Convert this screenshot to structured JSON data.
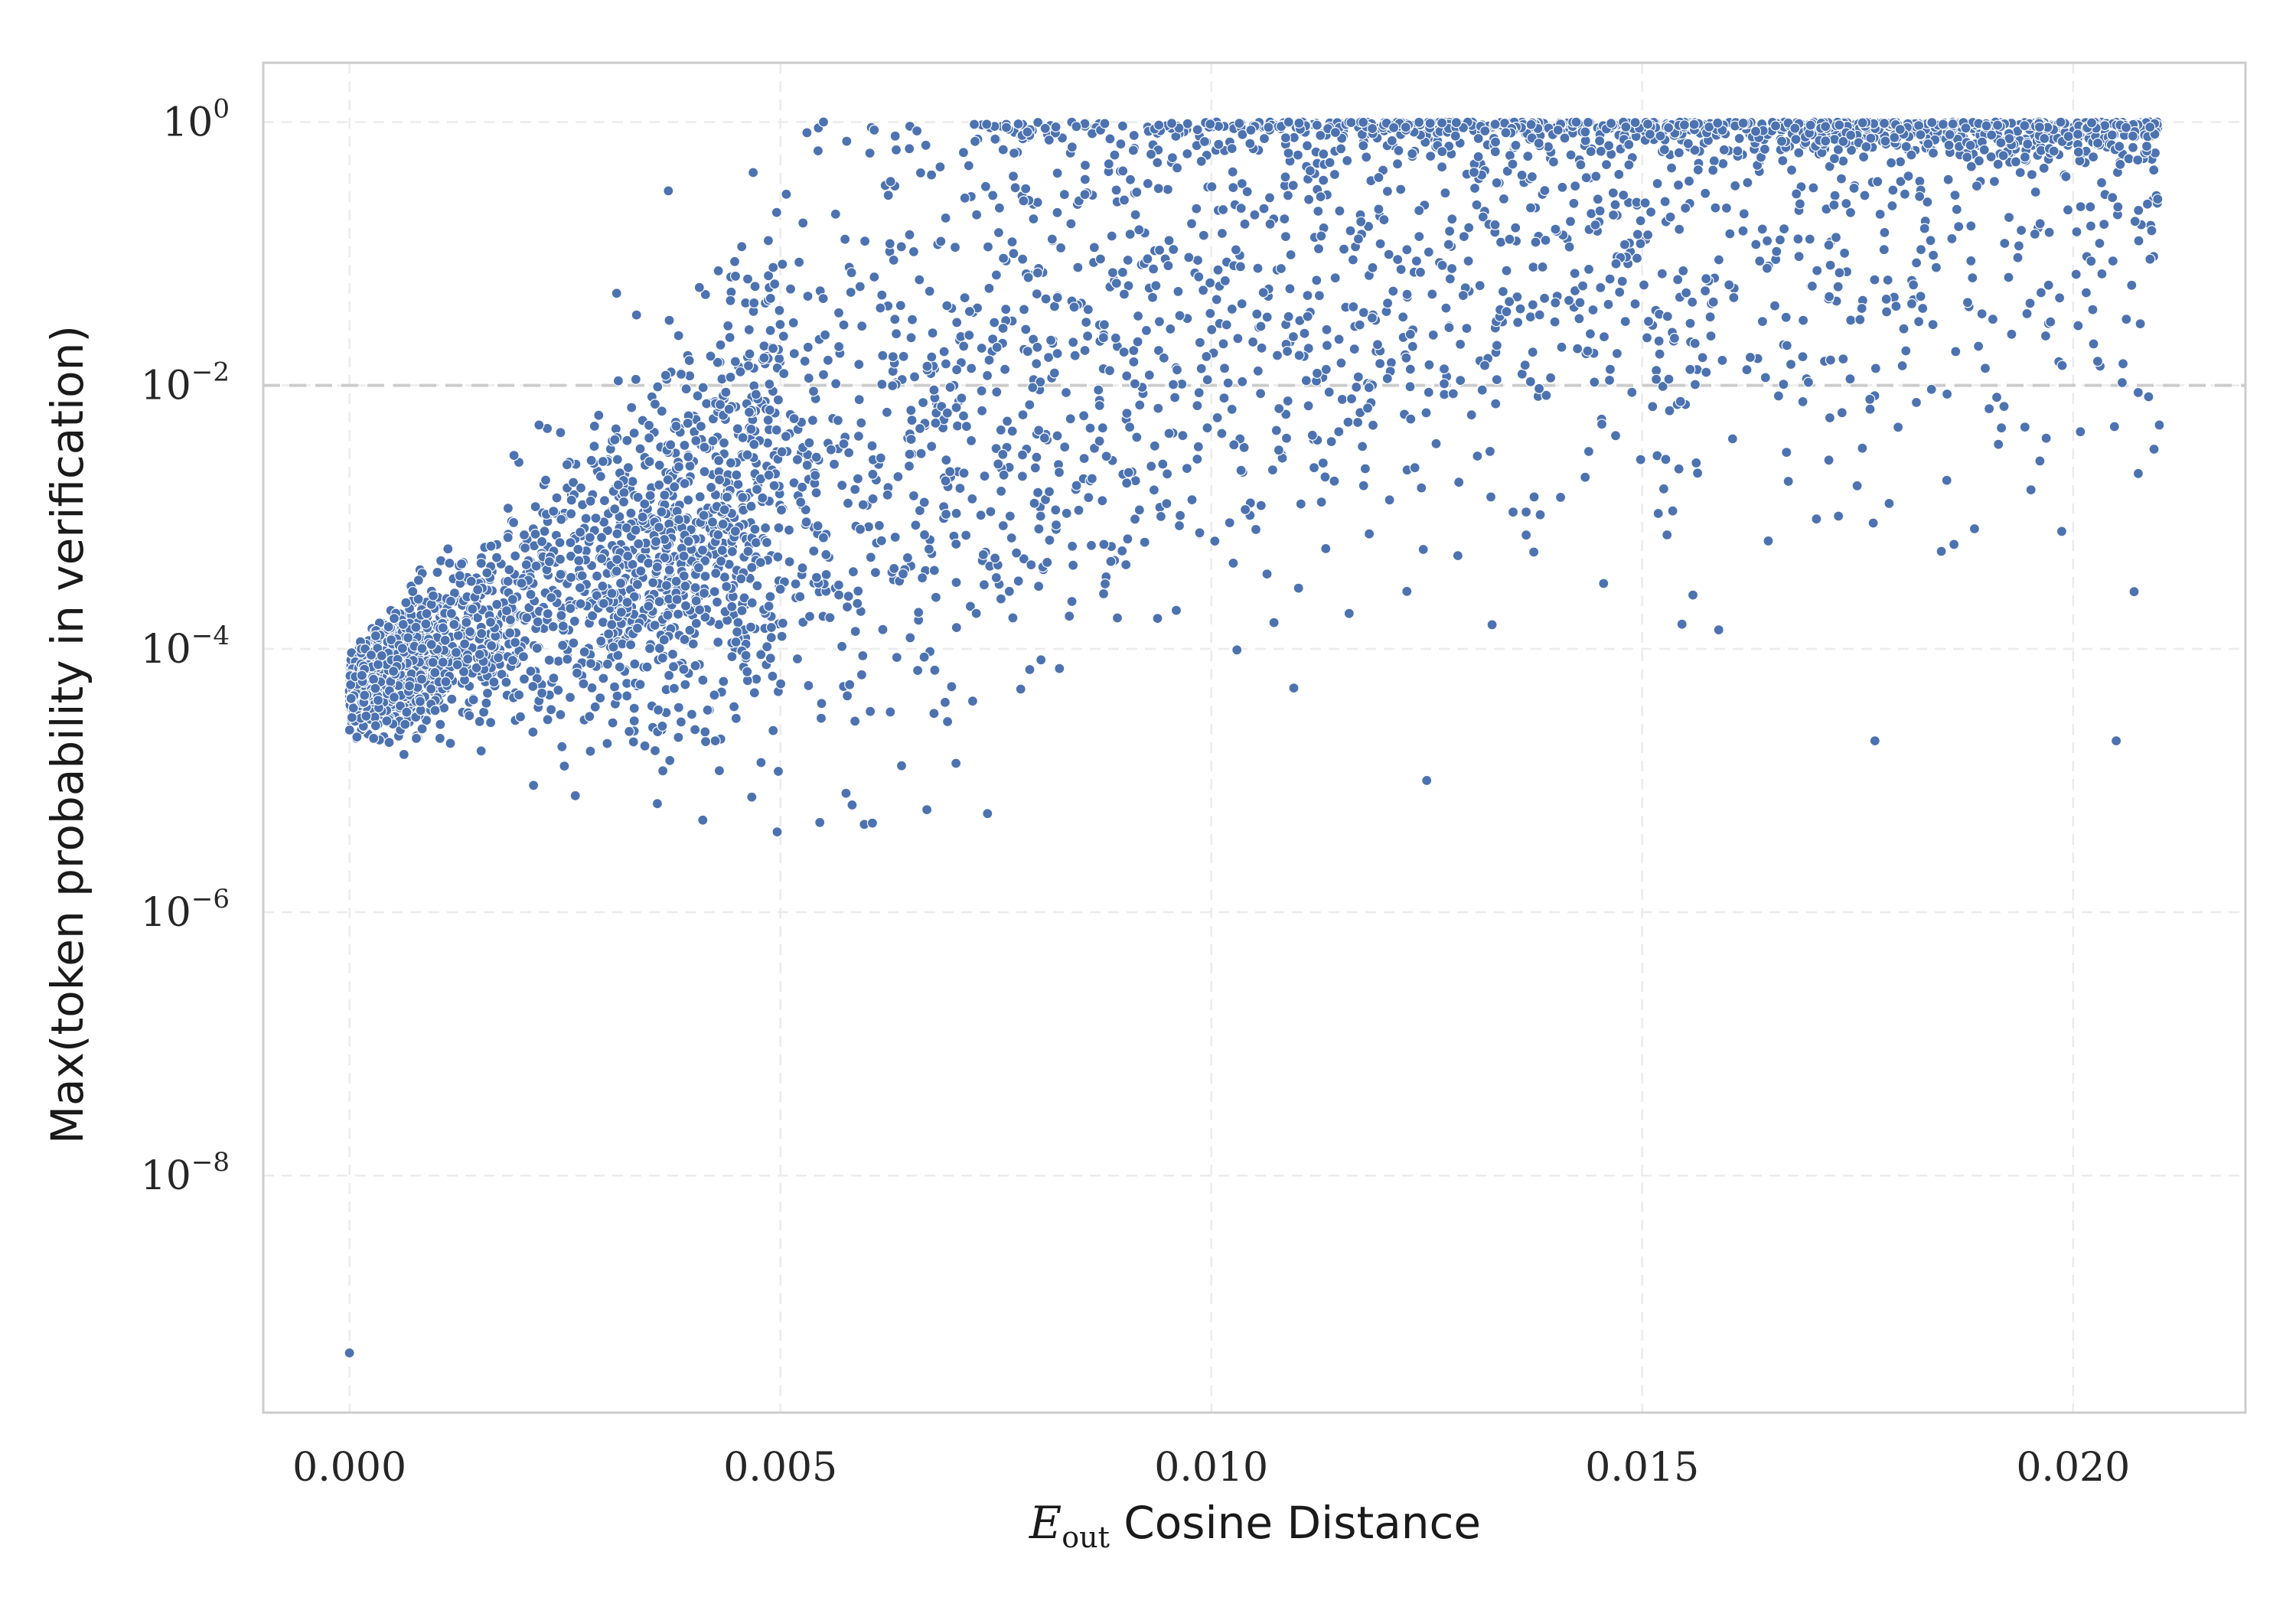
{
  "chart_data": {
    "type": "scatter",
    "title": "",
    "xlabel": {
      "symbol": "E",
      "subscript": "out",
      "text": "Cosine Distance"
    },
    "ylabel": "Max(token probability in verification)",
    "x_ticks": [
      "0.000",
      "0.005",
      "0.010",
      "0.015",
      "0.020"
    ],
    "x_tick_values": [
      0.0,
      0.005,
      0.01,
      0.015,
      0.02
    ],
    "y_ticks": [
      {
        "base": "10",
        "exp": "0"
      },
      {
        "base": "10",
        "exp": "−2"
      },
      {
        "base": "10",
        "exp": "−4"
      },
      {
        "base": "10",
        "exp": "−6"
      },
      {
        "base": "10",
        "exp": "−8"
      }
    ],
    "y_tick_exponents": [
      0,
      -2,
      -4,
      -6,
      -8
    ],
    "xlim": [
      -0.001,
      0.022
    ],
    "ylim": [
      -9.8,
      0.45
    ],
    "yscale": "log",
    "grid": true,
    "reference_line": {
      "y": 0.01,
      "style": "dashed"
    },
    "point_color": "#4c72b0",
    "point_edge_color": "#ffffff",
    "series": [
      {
        "description_points_sample": [
          {
            "x": 0.0,
            "y": 4.5e-10
          },
          {
            "x": 0.0003,
            "y": 5e-05
          },
          {
            "x": 0.0022,
            "y": 0.005
          },
          {
            "x": 0.0031,
            "y": 0.05
          },
          {
            "x": 0.0037,
            "y": 0.3
          },
          {
            "x": 0.0041,
            "y": 5e-06
          },
          {
            "x": 0.0055,
            "y": 1.0
          },
          {
            "x": 0.0067,
            "y": 6e-06
          },
          {
            "x": 0.0125,
            "y": 1e-05
          },
          {
            "x": 0.0177,
            "y": 2e-05
          },
          {
            "x": 0.0205,
            "y": 2e-05
          },
          {
            "x": 0.021,
            "y": 0.005
          }
        ]
      }
    ]
  },
  "colors": {
    "axes_frame": "#cccccc",
    "grid": "#ebebeb",
    "reference_line": "#cccccc",
    "points": "#4c72b0"
  }
}
